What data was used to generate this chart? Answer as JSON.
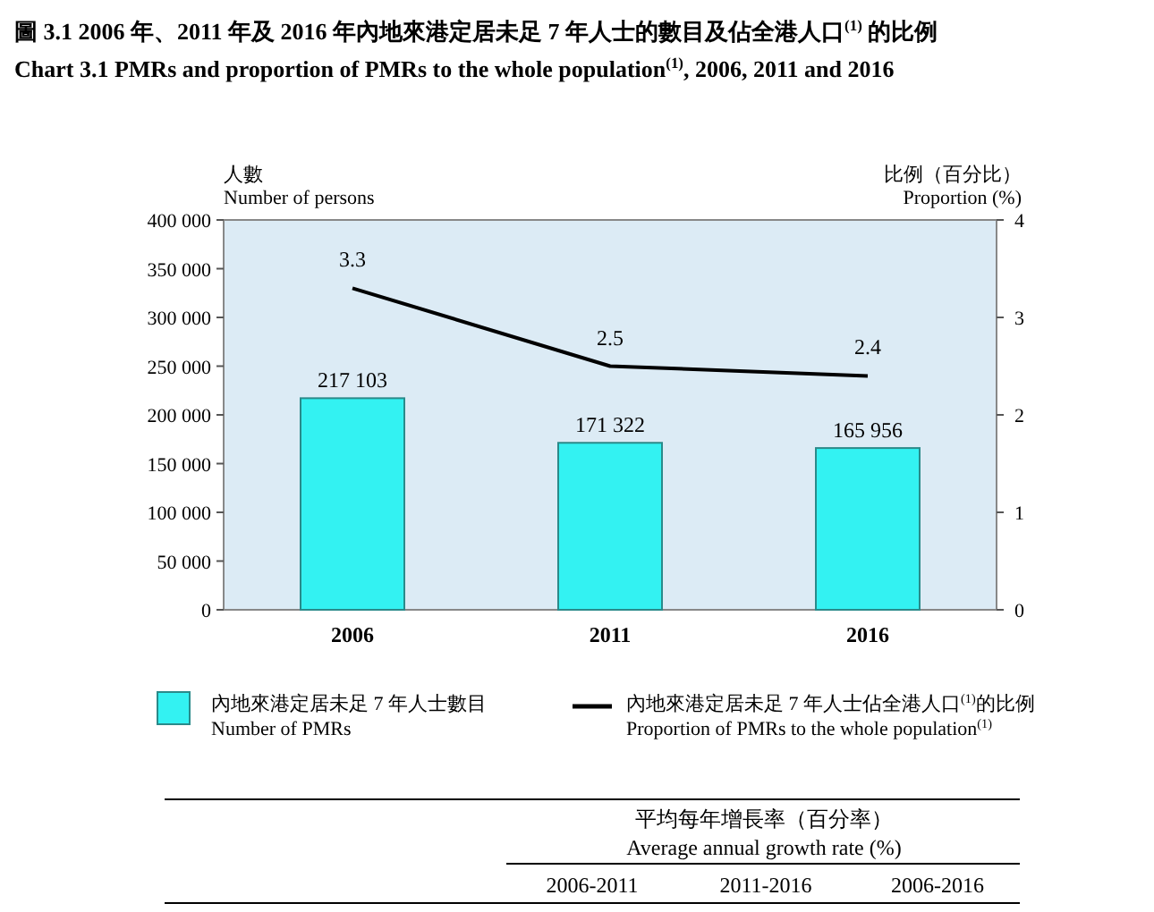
{
  "chart_data": {
    "type": "bar",
    "title": "圖 3.1 2006 年、2011 年及 2016 年內地來港定居未足 7 年人士的數目及佔全港人口$^{(1)}$ 的比例",
    "subtitle": "Chart 3.1 PMRs and proportion of PMRs to the whole population$^{(1)}$, 2006, 2011 and 2016",
    "ylabel": "人數\nNumber of persons",
    "y2label": "比例（百分比）\nProportion (%)",
    "categories": [
      "2006",
      "2011",
      "2016"
    ],
    "series": [
      {
        "name": "內地來港定居未足 7 年人士數目\nNumber of PMRs",
        "color": "#33f2f2",
        "values": [
          217103,
          171322,
          165956
        ],
        "value_labels": [
          "217 103",
          "171 322",
          "165 956"
        ]
      },
      {
        "name": "內地來港定居未足 7 年人士佔全港人口$^{(1)}$的比例\nProportion of PMRs to the whole population$^{(1)}$",
        "type": "line",
        "axis": "y2",
        "color": "#000000",
        "values": [
          3.3,
          2.5,
          2.4
        ],
        "value_labels": [
          "3.3",
          "2.5",
          "2.4"
        ]
      }
    ],
    "ylim": [
      0,
      400000
    ],
    "yticks": [
      {
        "value": 0,
        "label": "0"
      },
      {
        "value": 50000,
        "label": "50 000"
      },
      {
        "value": 100000,
        "label": "100 000"
      },
      {
        "value": 150000,
        "label": "150 000"
      },
      {
        "value": 200000,
        "label": "200 000"
      },
      {
        "value": 250000,
        "label": "250 000"
      },
      {
        "value": 300000,
        "label": "300 000"
      },
      {
        "value": 350000,
        "label": "350 000"
      },
      {
        "value": 400000,
        "label": "400 000"
      }
    ],
    "y2lim": [
      0,
      4
    ],
    "y2ticks": [
      0,
      1,
      2,
      3,
      4
    ],
    "legend": "bottom",
    "marker": "none",
    "line_style": "solid",
    "annotations": [
      "平均每年增長率（百分率）\nAverage annual growth rate (%)",
      "2006-2011",
      "2011-2016",
      "2006-2016"
    ]
  }
}
